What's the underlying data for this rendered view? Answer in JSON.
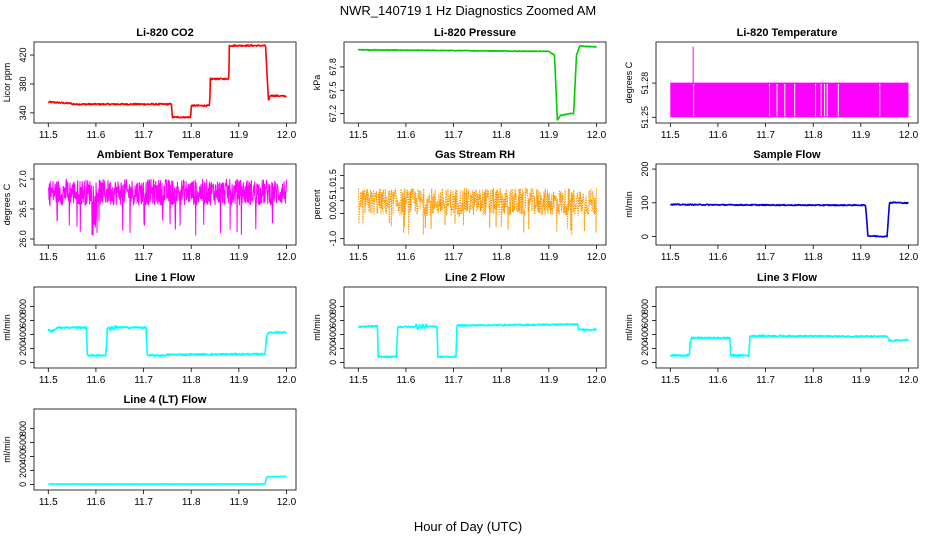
{
  "figure": {
    "title": "NWR_140719  1 Hz Diagnostics Zoomed AM",
    "xlabel": "Hour of Day (UTC)"
  },
  "chart_data": [
    {
      "type": "line",
      "title": "Li-820 CO2",
      "ylabel": "Licor ppm",
      "color": "#ff0000",
      "xlim": [
        11.47,
        12.02
      ],
      "ylim": [
        326,
        438
      ],
      "xticks": [
        11.5,
        11.6,
        11.7,
        11.8,
        11.9,
        12.0
      ],
      "xtick_labels": [
        "11.5",
        "11.6",
        "11.7",
        "11.8",
        "11.9",
        "12.0"
      ],
      "yticks": [
        340,
        380,
        420
      ],
      "ytick_labels": [
        "340",
        "380",
        "420"
      ],
      "noise": 1.0,
      "series": [
        {
          "x": [
            11.5,
            11.549,
            11.55,
            11.759,
            11.76,
            11.799,
            11.8,
            11.839,
            11.84,
            11.879,
            11.88,
            11.956,
            11.962,
            11.966,
            12.0
          ],
          "y": [
            355,
            353,
            352,
            352,
            334,
            334,
            350,
            350,
            387,
            387,
            433,
            433,
            357,
            364,
            363
          ]
        }
      ]
    },
    {
      "type": "line",
      "title": "Li-820 Pressure",
      "ylabel": "kPa",
      "color": "#00cc00",
      "xlim": [
        11.47,
        12.02
      ],
      "ylim": [
        67.08,
        68.12
      ],
      "xticks": [
        11.5,
        11.6,
        11.7,
        11.8,
        11.9,
        12.0
      ],
      "xtick_labels": [
        "11.5",
        "11.6",
        "11.7",
        "11.8",
        "11.9",
        "12.0"
      ],
      "yticks": [
        67.2,
        67.5,
        67.8
      ],
      "ytick_labels": [
        "67.2",
        "67.5",
        "67.8"
      ],
      "noise": 0.004,
      "series": [
        {
          "x": [
            11.5,
            11.7,
            11.9,
            11.912,
            11.918,
            11.925,
            11.945,
            11.952,
            11.958,
            11.965,
            11.985,
            12.0
          ],
          "y": [
            68.02,
            68.01,
            68.0,
            67.95,
            67.12,
            67.18,
            67.2,
            67.2,
            67.95,
            68.07,
            68.06,
            68.06
          ]
        }
      ]
    },
    {
      "type": "line",
      "title": "Li-820 Temperature",
      "ylabel": "degrees C",
      "color": "#ff00ff",
      "xlim": [
        11.47,
        12.02
      ],
      "ylim": [
        51.245,
        51.316
      ],
      "xticks": [
        11.5,
        11.6,
        11.7,
        11.8,
        11.9,
        12.0
      ],
      "xtick_labels": [
        "11.5",
        "11.6",
        "11.7",
        "11.8",
        "11.9",
        "12.0"
      ],
      "yticks": [
        51.25,
        51.28
      ],
      "ytick_labels": [
        "51.25",
        "51.28"
      ],
      "binary": [
        51.25,
        51.28
      ],
      "spike": {
        "x": 11.548,
        "y": 51.312
      },
      "series": []
    },
    {
      "type": "line",
      "title": "Ambient Box Temperature",
      "ylabel": "degrees C",
      "color": "#ff00ff",
      "xlim": [
        11.47,
        12.02
      ],
      "ylim": [
        25.9,
        27.25
      ],
      "xticks": [
        11.5,
        11.6,
        11.7,
        11.8,
        11.9,
        12.0
      ],
      "xtick_labels": [
        "11.5",
        "11.6",
        "11.7",
        "11.8",
        "11.9",
        "12.0"
      ],
      "yticks": [
        26.0,
        26.5,
        27.0
      ],
      "ytick_labels": [
        "26.0",
        "26.5",
        "27.0"
      ],
      "fill": {
        "center": 26.78,
        "amp": 0.22,
        "dips": 26.05
      },
      "series": []
    },
    {
      "type": "line",
      "title": "Gas Stream RH",
      "ylabel": "percent",
      "color": "#ff9900",
      "xlim": [
        11.47,
        12.02
      ],
      "ylim": [
        -1.25,
        1.95
      ],
      "xticks": [
        11.5,
        11.6,
        11.7,
        11.8,
        11.9,
        12.0
      ],
      "xtick_labels": [
        "11.5",
        "11.6",
        "11.7",
        "11.8",
        "11.9",
        "12.0"
      ],
      "yticks": [
        -1.0,
        0.0,
        0.5,
        1.0,
        1.5
      ],
      "ytick_labels": [
        "-1.0",
        "0.0",
        "0.5",
        "1.0",
        "1.5"
      ],
      "fill": {
        "center": 0.45,
        "amp": 0.55,
        "dips": -0.9,
        "dotted": true
      },
      "series": []
    },
    {
      "type": "line",
      "title": "Sample Flow",
      "ylabel": "ml/min",
      "color": "#0000dd",
      "xlim": [
        11.47,
        12.02
      ],
      "ylim": [
        -25,
        215
      ],
      "xticks": [
        11.5,
        11.6,
        11.7,
        11.8,
        11.9,
        12.0
      ],
      "xtick_labels": [
        "11.5",
        "11.6",
        "11.7",
        "11.8",
        "11.9",
        "12.0"
      ],
      "yticks": [
        0,
        100,
        200
      ],
      "ytick_labels": [
        "0",
        "100",
        "200"
      ],
      "noise": 1.5,
      "series": [
        {
          "x": [
            11.5,
            11.6,
            11.8,
            11.91,
            11.915,
            11.955,
            11.96,
            11.97,
            12.0
          ],
          "y": [
            95,
            94,
            93,
            93,
            2,
            0,
            100,
            101,
            99
          ]
        }
      ]
    },
    {
      "type": "line",
      "title": "Line 1 Flow",
      "ylabel": "ml/min",
      "color": "#00ffff",
      "xlim": [
        11.47,
        12.02
      ],
      "ylim": [
        -80,
        1080
      ],
      "xticks": [
        11.5,
        11.6,
        11.7,
        11.8,
        11.9,
        12.0
      ],
      "xtick_labels": [
        "11.5",
        "11.6",
        "11.7",
        "11.8",
        "11.9",
        "12.0"
      ],
      "yticks": [
        0,
        200,
        400,
        600,
        800
      ],
      "ytick_labels": [
        "0",
        "200",
        "400",
        "600",
        "800"
      ],
      "noise": 12,
      "osc": [
        [
          11.625,
          11.643,
          60
        ]
      ],
      "series": [
        {
          "x": [
            11.5,
            11.505,
            11.52,
            11.58,
            11.582,
            11.621,
            11.624,
            11.643,
            11.705,
            11.708,
            11.745,
            11.75,
            11.955,
            11.958,
            11.962,
            12.0
          ],
          "y": [
            480,
            440,
            500,
            500,
            100,
            100,
            480,
            500,
            500,
            100,
            100,
            110,
            120,
            360,
            430,
            430
          ]
        }
      ]
    },
    {
      "type": "line",
      "title": "Line 2 Flow",
      "ylabel": "ml/min",
      "color": "#00ffff",
      "xlim": [
        11.47,
        12.02
      ],
      "ylim": [
        -80,
        1080
      ],
      "xticks": [
        11.5,
        11.6,
        11.7,
        11.8,
        11.9,
        12.0
      ],
      "xtick_labels": [
        "11.5",
        "11.6",
        "11.7",
        "11.8",
        "11.9",
        "12.0"
      ],
      "yticks": [
        0,
        200,
        400,
        600,
        800
      ],
      "ytick_labels": [
        "0",
        "200",
        "400",
        "600",
        "800"
      ],
      "noise": 10,
      "osc": [
        [
          11.62,
          11.643,
          60
        ]
      ],
      "series": [
        {
          "x": [
            11.5,
            11.54,
            11.542,
            11.58,
            11.583,
            11.62,
            11.643,
            11.665,
            11.667,
            11.705,
            11.707,
            11.96,
            11.962,
            12.0
          ],
          "y": [
            510,
            520,
            80,
            80,
            510,
            510,
            515,
            515,
            80,
            80,
            530,
            545,
            470,
            470
          ]
        }
      ]
    },
    {
      "type": "line",
      "title": "Line 3 Flow",
      "ylabel": "ml/min",
      "color": "#00ffff",
      "xlim": [
        11.47,
        12.02
      ],
      "ylim": [
        -80,
        1080
      ],
      "xticks": [
        11.5,
        11.6,
        11.7,
        11.8,
        11.9,
        12.0
      ],
      "xtick_labels": [
        "11.5",
        "11.6",
        "11.7",
        "11.8",
        "11.9",
        "12.0"
      ],
      "yticks": [
        0,
        200,
        400,
        600,
        800
      ],
      "ytick_labels": [
        "0",
        "200",
        "400",
        "600",
        "800"
      ],
      "noise": 12,
      "series": [
        {
          "x": [
            11.5,
            11.54,
            11.542,
            11.545,
            11.625,
            11.627,
            11.665,
            11.667,
            11.67,
            11.955,
            11.96,
            12.0
          ],
          "y": [
            100,
            100,
            300,
            350,
            350,
            100,
            100,
            370,
            380,
            370,
            310,
            320
          ]
        }
      ]
    },
    {
      "type": "line",
      "title": "Line 4 (LT) Flow",
      "ylabel": "ml/min",
      "color": "#00ffff",
      "xlim": [
        11.47,
        12.02
      ],
      "ylim": [
        -80,
        1080
      ],
      "xticks": [
        11.5,
        11.6,
        11.7,
        11.8,
        11.9,
        12.0
      ],
      "xtick_labels": [
        "11.5",
        "11.6",
        "11.7",
        "11.8",
        "11.9",
        "12.0"
      ],
      "yticks": [
        0,
        200,
        400,
        600,
        800
      ],
      "ytick_labels": [
        "0",
        "200",
        "400",
        "600",
        "800"
      ],
      "noise": 3,
      "series": [
        {
          "x": [
            11.5,
            11.955,
            11.958,
            11.962,
            12.0
          ],
          "y": [
            5,
            5,
            100,
            110,
            115
          ]
        }
      ]
    }
  ]
}
